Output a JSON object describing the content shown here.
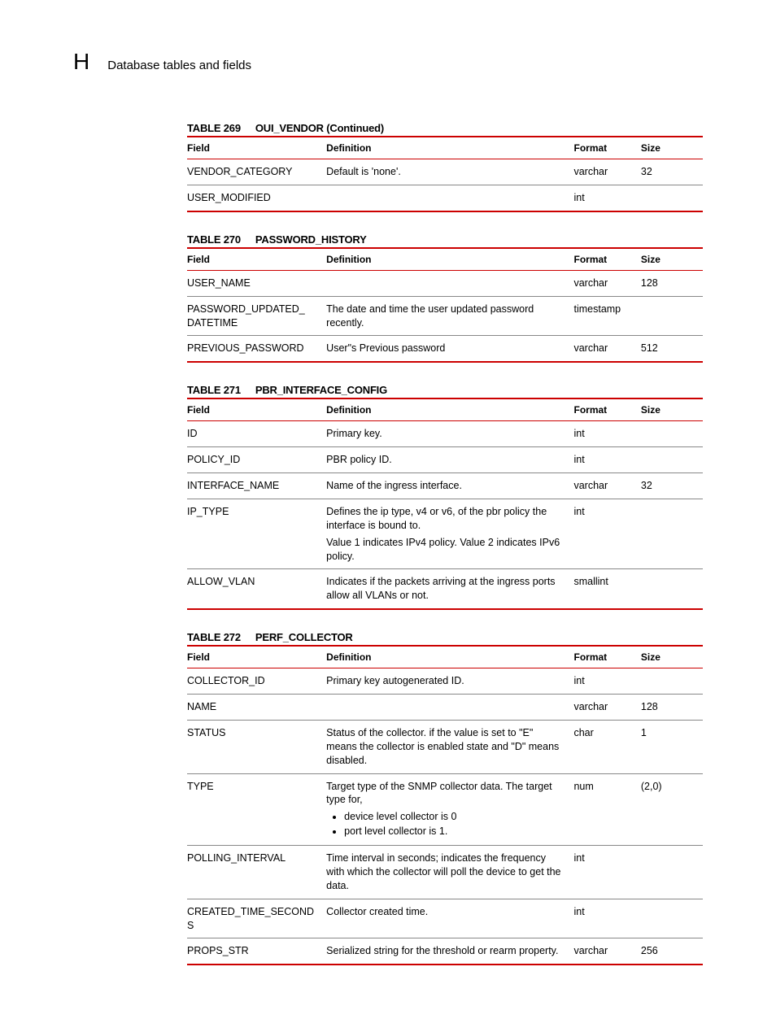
{
  "header": {
    "letter": "H",
    "title": "Database tables and fields"
  },
  "columns": {
    "field": "Field",
    "definition": "Definition",
    "format": "Format",
    "size": "Size"
  },
  "tables": [
    {
      "number": "TABLE 269",
      "name": "OUI_VENDOR (Continued)",
      "rows": [
        {
          "field": "VENDOR_CATEGORY",
          "definition": "Default is 'none'.",
          "format": "varchar",
          "size": "32"
        },
        {
          "field": "USER_MODIFIED",
          "definition": "",
          "format": "int",
          "size": ""
        }
      ]
    },
    {
      "number": "TABLE 270",
      "name": "PASSWORD_HISTORY",
      "rows": [
        {
          "field": "USER_NAME",
          "definition": "",
          "format": "varchar",
          "size": "128"
        },
        {
          "field": "PASSWORD_UPDATED_\nDATETIME",
          "definition": "The date and time the user updated password recently.",
          "format": "timestamp",
          "size": ""
        },
        {
          "field": "PREVIOUS_PASSWORD",
          "definition": "User\"s Previous password",
          "format": "varchar",
          "size": "512"
        }
      ]
    },
    {
      "number": "TABLE 271",
      "name": "PBR_INTERFACE_CONFIG",
      "rows": [
        {
          "field": "ID",
          "definition": "Primary key.",
          "format": "int",
          "size": ""
        },
        {
          "field": "POLICY_ID",
          "definition": "PBR policy ID.",
          "format": "int",
          "size": ""
        },
        {
          "field": "INTERFACE_NAME",
          "definition": "Name of the ingress interface.",
          "format": "varchar",
          "size": "32"
        },
        {
          "field": "IP_TYPE",
          "definition": "Defines the ip type, v4 or v6, of the pbr policy the interface is bound to.\nValue 1 indicates IPv4 policy. Value 2 indicates IPv6 policy.",
          "format": "int",
          "size": ""
        },
        {
          "field": "ALLOW_VLAN",
          "definition": "Indicates if the packets arriving at the ingress ports allow all VLANs or not.",
          "format": "smallint",
          "size": ""
        }
      ]
    },
    {
      "number": "TABLE 272",
      "name": "PERF_COLLECTOR",
      "rows": [
        {
          "field": "COLLECTOR_ID",
          "definition": "Primary key autogenerated ID.",
          "format": "int",
          "size": ""
        },
        {
          "field": "NAME",
          "definition": "",
          "format": "varchar",
          "size": "128"
        },
        {
          "field": "STATUS",
          "definition": "Status of the collector. if the value is set to \"E\" means the collector is enabled state and \"D\" means disabled.",
          "format": "char",
          "size": "1"
        },
        {
          "field": "TYPE",
          "definition_text": "Target type of the SNMP collector data. The target type for,",
          "definition_list": [
            "device level collector is 0",
            "port level collector is 1."
          ],
          "format": "num",
          "size": "(2,0)"
        },
        {
          "field": "POLLING_INTERVAL",
          "definition": "Time interval in seconds; indicates the frequency with which the collector will poll the device to get the data.",
          "format": "int",
          "size": ""
        },
        {
          "field": "CREATED_TIME_SECONDS",
          "definition": "Collector created time.",
          "format": "int",
          "size": ""
        },
        {
          "field": "PROPS_STR",
          "definition": "Serialized string for the threshold or rearm property.",
          "format": "varchar",
          "size": "256"
        }
      ]
    }
  ],
  "colors": {
    "rule": "#cc0000",
    "row_rule": "#888888",
    "text": "#000000",
    "background": "#ffffff"
  }
}
